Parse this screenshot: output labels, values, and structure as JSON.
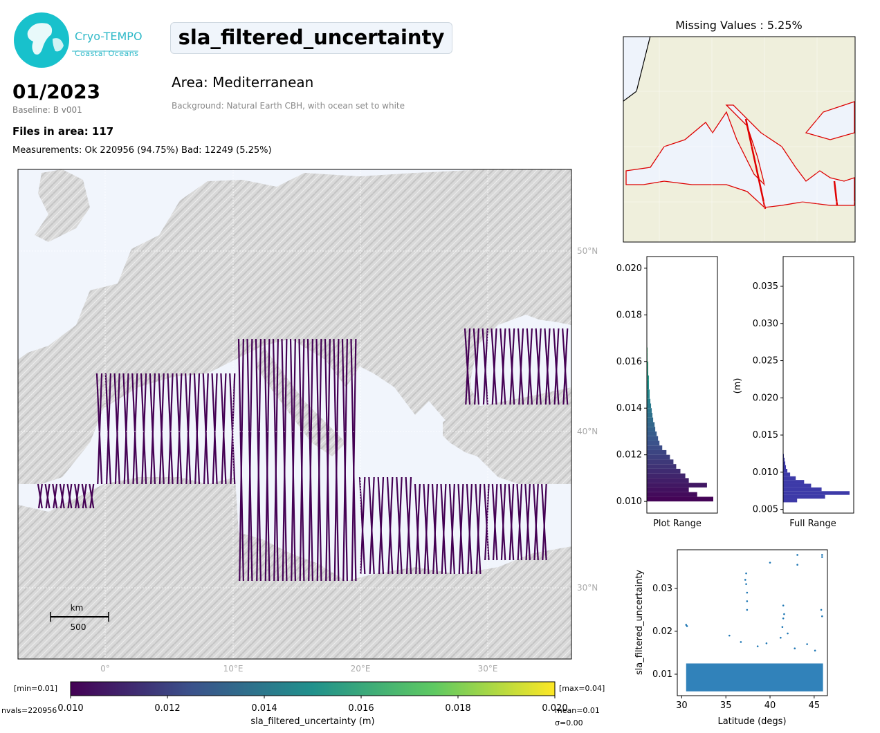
{
  "header": {
    "logo_line1": "Cryo-TEMPO",
    "logo_line2": "Coastal Oceans",
    "variable_name": "sla_filtered_uncertainty",
    "date": "01/2023",
    "baseline": "Baseline: B v001",
    "files_in_area": "Files in area: 117",
    "measurements": "Measurements: Ok 220956 (94.75%) Bad: 12249 (5.25%)",
    "area": "Area: Mediterranean",
    "background": "Background: Natural Earth CBH, with ocean set to white",
    "missing_values": "Missing Values : 5.25%"
  },
  "main_map": {
    "lon_labels": [
      "0°",
      "10°E",
      "20°E",
      "30°E"
    ],
    "lat_labels": [
      "50°N",
      "40°N",
      "30°N"
    ],
    "scale_unit": "km",
    "scale_value": "500"
  },
  "colorbar": {
    "min_label": "[min=0.01]",
    "max_label": "[max=0.04]",
    "ticks": [
      "0.010",
      "0.012",
      "0.014",
      "0.016",
      "0.018",
      "0.020"
    ],
    "label": "sla_filtered_uncertainty (m)",
    "nvals": "nvals=220956",
    "mean": "mean=0.01",
    "sigma": "σ=0.00",
    "colors": [
      "#440154",
      "#3b528b",
      "#21918c",
      "#5ec962",
      "#fde725"
    ]
  },
  "chart_data": [
    {
      "type": "bar",
      "orientation": "horizontal",
      "name": "plot_range_histogram",
      "xlabel": "Plot Range",
      "ylim": [
        0.0095,
        0.0205
      ],
      "yticks": [
        "0.010",
        "0.012",
        "0.014",
        "0.016",
        "0.018",
        "0.020"
      ],
      "bin_width": 0.0002,
      "bins": [
        0.0101,
        0.0103,
        0.0105,
        0.0107,
        0.0109,
        0.0111,
        0.0113,
        0.0115,
        0.0117,
        0.0119,
        0.0121,
        0.0123,
        0.0125,
        0.0127,
        0.0129,
        0.0131,
        0.0133,
        0.0135,
        0.0137,
        0.0139,
        0.0141,
        0.0143,
        0.0145,
        0.0147,
        0.0149,
        0.0151,
        0.0153,
        0.0155,
        0.0157,
        0.0159,
        0.0161,
        0.0163,
        0.0165,
        0.0167
      ],
      "counts": [
        95,
        72,
        60,
        86,
        60,
        55,
        48,
        42,
        38,
        33,
        28,
        22,
        18,
        16,
        14,
        12,
        11,
        9,
        8,
        7,
        6,
        5,
        4,
        4,
        3,
        3,
        3,
        2,
        2,
        2,
        1,
        1,
        1,
        0.5
      ]
    },
    {
      "type": "bar",
      "orientation": "horizontal",
      "name": "full_range_histogram",
      "xlabel": "Full Range",
      "ylabel": "(m)",
      "ylim": [
        0.0045,
        0.039
      ],
      "yticks": [
        "0.005",
        "0.010",
        "0.015",
        "0.020",
        "0.025",
        "0.030",
        "0.035"
      ],
      "bin_width": 0.0005,
      "bins": [
        0.0062,
        0.0067,
        0.0072,
        0.0077,
        0.0082,
        0.0087,
        0.0092,
        0.0097,
        0.0102,
        0.0107,
        0.0112,
        0.0117,
        0.0122
      ],
      "counts": [
        20,
        60,
        95,
        55,
        40,
        30,
        18,
        10,
        6,
        4,
        3,
        2,
        1
      ]
    },
    {
      "type": "scatter",
      "name": "uncertainty_vs_latitude",
      "xlabel": "Latitude (degs)",
      "ylabel": "sla_filtered_uncertainty",
      "xlim": [
        29.5,
        46.5
      ],
      "ylim": [
        0.005,
        0.039
      ],
      "xticks": [
        "30",
        "35",
        "40",
        "45"
      ],
      "yticks": [
        "0.01",
        "0.02",
        "0.03"
      ],
      "color": "#1f77b4",
      "band": {
        "lat_min": 30.5,
        "lat_max": 46.0,
        "low": 0.006,
        "high": 0.0125
      },
      "outliers": [
        [
          30.5,
          0.0215
        ],
        [
          30.6,
          0.0212
        ],
        [
          37.3,
          0.0335
        ],
        [
          37.3,
          0.031
        ],
        [
          37.4,
          0.029
        ],
        [
          37.4,
          0.027
        ],
        [
          37.4,
          0.025
        ],
        [
          37.2,
          0.032
        ],
        [
          40.0,
          0.036
        ],
        [
          41.5,
          0.026
        ],
        [
          41.5,
          0.023
        ],
        [
          41.4,
          0.021
        ],
        [
          41.6,
          0.024
        ],
        [
          43.1,
          0.0378
        ],
        [
          43.1,
          0.0355
        ],
        [
          45.9,
          0.0378
        ],
        [
          45.9,
          0.0373
        ],
        [
          45.8,
          0.025
        ],
        [
          45.9,
          0.0235
        ],
        [
          35.4,
          0.019
        ],
        [
          36.7,
          0.0175
        ],
        [
          38.6,
          0.0165
        ],
        [
          39.6,
          0.0172
        ],
        [
          42.8,
          0.016
        ],
        [
          44.2,
          0.017
        ],
        [
          45.1,
          0.0155
        ],
        [
          42.0,
          0.0195
        ],
        [
          41.2,
          0.0185
        ]
      ]
    }
  ]
}
